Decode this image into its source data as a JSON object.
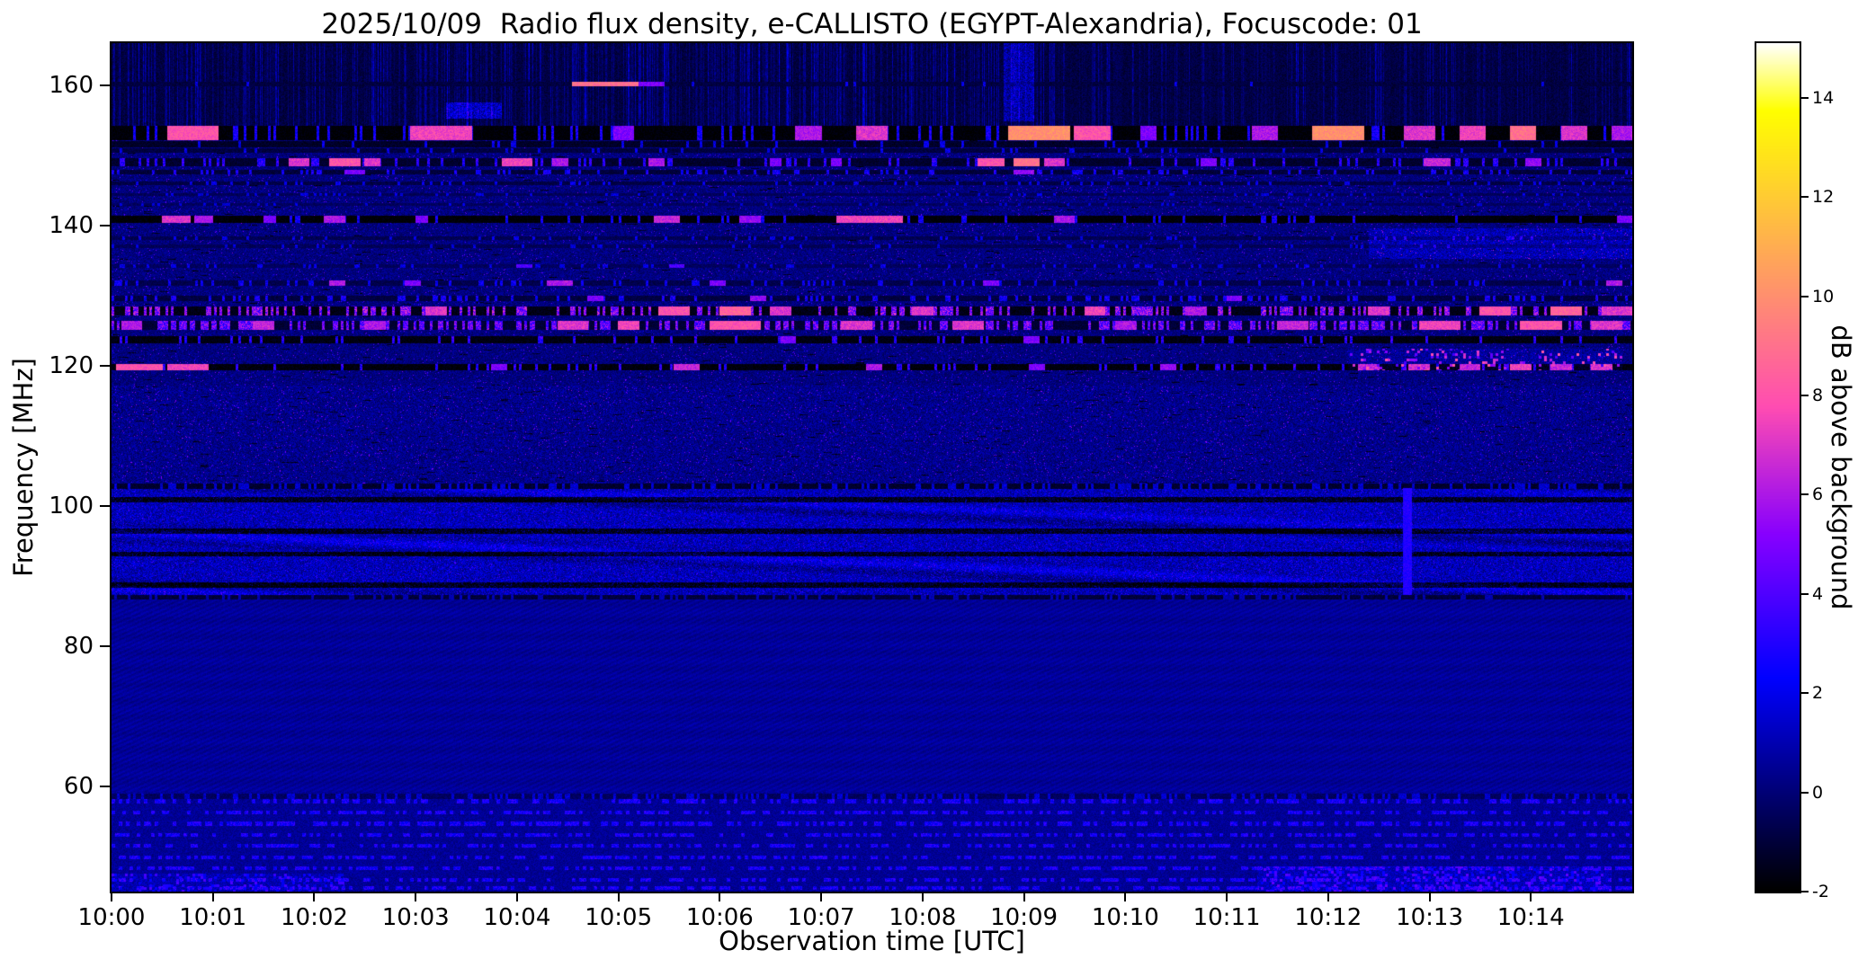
{
  "chart_data": {
    "type": "heatmap",
    "subtype": "radio-spectrogram",
    "title": "2025/10/09  Radio flux density, e-CALLISTO (EGYPT-Alexandria), Focuscode: 01",
    "xlabel": "Observation time [UTC]",
    "ylabel": "Frequency [MHz]",
    "x_ticks": [
      "10:00",
      "10:01",
      "10:02",
      "10:03",
      "10:04",
      "10:05",
      "10:06",
      "10:07",
      "10:08",
      "10:09",
      "10:10",
      "10:11",
      "10:12",
      "10:13",
      "10:14"
    ],
    "x_tick_minutes": [
      0,
      1,
      2,
      3,
      4,
      5,
      6,
      7,
      8,
      9,
      10,
      11,
      12,
      13,
      14
    ],
    "x_range_minutes": [
      0,
      15
    ],
    "y_ticks": [
      160,
      140,
      120,
      100,
      80,
      60
    ],
    "y_range_mhz": [
      45,
      166
    ],
    "grid": false,
    "colorbar": {
      "label": "dB above background",
      "ticks": [
        -2,
        0,
        2,
        4,
        6,
        8,
        10,
        12,
        14
      ],
      "range": [
        -2,
        15.1
      ],
      "colormap": "gnuplot2",
      "colors": {
        "low": "#000000",
        "mid": "#2020cc",
        "high": "#ff66aa",
        "top": "#ffffff"
      }
    },
    "bands": [
      {
        "f_lo": 154.2,
        "f_hi": 166.5,
        "base": -0.9,
        "noise": 0.5,
        "texture": "streaks"
      },
      {
        "f_lo": 117.2,
        "f_hi": 154.2,
        "base": 0.15,
        "noise": 0.75,
        "texture": "speckle"
      },
      {
        "f_lo": 103.2,
        "f_hi": 117.2,
        "base": 0.35,
        "noise": 0.95,
        "texture": "speckle"
      },
      {
        "f_lo": 87.3,
        "f_hi": 103.2,
        "base": 1.1,
        "noise": 1.25,
        "texture": "fm"
      },
      {
        "f_lo": 59.2,
        "f_hi": 87.3,
        "base": 0.55,
        "noise": 0.3,
        "texture": "ripple"
      },
      {
        "f_lo": 44.5,
        "f_hi": 59.2,
        "base": 0.5,
        "noise": 0.55,
        "texture": "dots"
      }
    ],
    "rfi_lines": [
      {
        "f": 160.2,
        "w": 0.35,
        "base": -0.9,
        "dot_prob": 0.02,
        "dot_v": 2,
        "bursts": [
          [
            4.55,
            5.2,
            9
          ],
          [
            5.2,
            5.45,
            5
          ]
        ]
      },
      {
        "f": 153.2,
        "w": 1.05,
        "base": -1.9,
        "dot_prob": 0.12,
        "dot_v": 2.5,
        "bursts": [
          [
            0.55,
            1.05,
            8
          ],
          [
            2.95,
            3.55,
            7.5
          ],
          [
            4.95,
            5.15,
            5
          ],
          [
            6.75,
            7.0,
            6
          ],
          [
            7.35,
            7.65,
            7
          ],
          [
            8.85,
            9.45,
            10
          ],
          [
            9.5,
            9.85,
            8
          ],
          [
            10.15,
            10.3,
            5
          ],
          [
            11.25,
            11.5,
            6
          ],
          [
            11.85,
            12.35,
            10
          ],
          [
            12.75,
            13.05,
            7
          ],
          [
            13.3,
            13.55,
            7.5
          ],
          [
            13.8,
            14.05,
            9
          ],
          [
            14.3,
            14.55,
            7
          ],
          [
            14.8,
            15,
            6
          ]
        ]
      },
      {
        "f": 151.6,
        "w": 0.45,
        "base": -1.3,
        "dot_prob": 0.05,
        "dot_v": 2,
        "bursts": []
      },
      {
        "f": 150.7,
        "w": 0.3,
        "base": -0.9,
        "dot_prob": 0.08,
        "dot_v": 2,
        "bursts": []
      },
      {
        "f": 149.0,
        "w": 0.55,
        "base": -1.2,
        "dot_prob": 0.18,
        "dot_v": 3,
        "bursts": [
          [
            1.75,
            1.95,
            7
          ],
          [
            2.15,
            2.45,
            8
          ],
          [
            2.5,
            2.65,
            7
          ],
          [
            3.85,
            4.15,
            7.5
          ],
          [
            4.35,
            4.5,
            6
          ],
          [
            5.3,
            5.45,
            6
          ],
          [
            6.5,
            6.6,
            5
          ],
          [
            7.1,
            7.2,
            5
          ],
          [
            8.55,
            8.8,
            8
          ],
          [
            8.9,
            9.15,
            9
          ],
          [
            9.2,
            9.4,
            7
          ],
          [
            10.75,
            10.9,
            5
          ],
          [
            12.95,
            13.2,
            6.5
          ],
          [
            13.95,
            14.1,
            5.5
          ]
        ]
      },
      {
        "f": 147.6,
        "w": 0.35,
        "base": -1.0,
        "dot_prob": 0.2,
        "dot_v": 2.5,
        "bursts": [
          [
            2.3,
            2.5,
            5
          ],
          [
            8.9,
            9.1,
            5.5
          ]
        ]
      },
      {
        "f": 146.0,
        "w": 0.3,
        "base": -0.8,
        "dot_prob": 0.15,
        "dot_v": 2,
        "bursts": []
      },
      {
        "f": 144.4,
        "w": 0.25,
        "base": -0.5,
        "dot_prob": 0.12,
        "dot_v": 1.8,
        "bursts": []
      },
      {
        "f": 143.0,
        "w": 0.22,
        "base": -0.4,
        "dot_prob": 0.1,
        "dot_v": 1.6,
        "bursts": []
      },
      {
        "f": 140.9,
        "w": 0.55,
        "base": -1.9,
        "dot_prob": 0.08,
        "dot_v": 2.5,
        "bursts": [
          [
            0.5,
            0.78,
            7
          ],
          [
            0.82,
            1.0,
            6
          ],
          [
            1.5,
            1.62,
            5
          ],
          [
            2.1,
            2.3,
            6
          ],
          [
            3.0,
            3.12,
            5
          ],
          [
            5.35,
            5.6,
            6.5
          ],
          [
            6.2,
            6.4,
            5.5
          ],
          [
            7.15,
            7.8,
            7.5
          ],
          [
            9.3,
            9.5,
            6
          ],
          [
            14.85,
            15,
            5
          ]
        ]
      },
      {
        "f": 138.2,
        "w": 0.28,
        "base": -0.6,
        "dot_prob": 0.12,
        "dot_v": 2,
        "bursts": []
      },
      {
        "f": 137.0,
        "w": 0.25,
        "base": -0.5,
        "dot_prob": 0.1,
        "dot_v": 1.8,
        "bursts": []
      },
      {
        "f": 134.2,
        "w": 0.25,
        "base": -0.4,
        "dot_prob": 0.15,
        "dot_v": 2,
        "bursts": [
          [
            4.0,
            4.15,
            4
          ],
          [
            5.5,
            5.65,
            4
          ]
        ]
      },
      {
        "f": 131.8,
        "w": 0.4,
        "base": -0.7,
        "dot_prob": 0.15,
        "dot_v": 2.2,
        "bursts": [
          [
            2.15,
            2.3,
            6
          ],
          [
            2.9,
            3.05,
            5
          ],
          [
            4.3,
            4.55,
            6
          ],
          [
            5.9,
            6.05,
            5
          ],
          [
            8.6,
            8.75,
            5
          ],
          [
            14.75,
            14.9,
            6
          ]
        ]
      },
      {
        "f": 129.6,
        "w": 0.35,
        "base": -0.9,
        "dot_prob": 0.25,
        "dot_v": 2.5,
        "bursts": [
          [
            4.7,
            4.85,
            5
          ],
          [
            6.3,
            6.45,
            5.5
          ],
          [
            11.0,
            11.15,
            5
          ]
        ]
      },
      {
        "f": 127.8,
        "w": 0.65,
        "base": -1.6,
        "dot_prob": 0.4,
        "dot_v": 5,
        "bursts": [
          [
            3.1,
            3.3,
            7
          ],
          [
            5.4,
            5.7,
            8
          ],
          [
            6.0,
            6.3,
            8.5
          ],
          [
            6.5,
            6.7,
            7
          ],
          [
            7.9,
            8.1,
            7
          ],
          [
            9.6,
            9.8,
            7.5
          ],
          [
            10.6,
            10.8,
            6
          ],
          [
            12.4,
            12.6,
            7
          ],
          [
            13.5,
            13.8,
            8
          ],
          [
            14.2,
            14.5,
            8.5
          ],
          [
            14.7,
            15,
            7
          ]
        ]
      },
      {
        "f": 125.8,
        "w": 0.65,
        "base": -1.1,
        "dot_prob": 0.45,
        "dot_v": 4.5,
        "bursts": [
          [
            0.1,
            0.3,
            6
          ],
          [
            1.4,
            1.6,
            6.5
          ],
          [
            2.5,
            2.7,
            6
          ],
          [
            4.4,
            4.7,
            7
          ],
          [
            5.0,
            5.2,
            7.5
          ],
          [
            5.9,
            6.4,
            8
          ],
          [
            7.2,
            7.5,
            7
          ],
          [
            8.3,
            8.6,
            7
          ],
          [
            9.9,
            10.1,
            6
          ],
          [
            11.5,
            11.8,
            6.5
          ],
          [
            12.9,
            13.3,
            7.5
          ],
          [
            13.9,
            14.3,
            8
          ],
          [
            14.6,
            14.9,
            7
          ]
        ]
      },
      {
        "f": 123.7,
        "w": 0.45,
        "base": -1.7,
        "dot_prob": 0.15,
        "dot_v": 3,
        "bursts": [
          [
            6.6,
            6.75,
            5
          ],
          [
            9.0,
            9.15,
            5
          ]
        ]
      },
      {
        "f": 119.8,
        "w": 0.5,
        "base": -1.8,
        "dot_prob": 0.12,
        "dot_v": 3,
        "bursts": [
          [
            0.05,
            0.5,
            8
          ],
          [
            0.55,
            0.95,
            7.5
          ],
          [
            3.75,
            3.9,
            5
          ],
          [
            5.55,
            5.8,
            6.5
          ],
          [
            7.45,
            7.6,
            6
          ],
          [
            9.05,
            9.2,
            5
          ],
          [
            10.35,
            10.5,
            5.5
          ],
          [
            12.3,
            12.5,
            6
          ],
          [
            12.8,
            13.0,
            6.5
          ],
          [
            13.3,
            13.5,
            6
          ],
          [
            13.8,
            14.0,
            7
          ],
          [
            14.2,
            14.4,
            6
          ],
          [
            14.6,
            14.8,
            6.5
          ]
        ]
      },
      {
        "f": 102.8,
        "w": 0.4,
        "base": -1.2,
        "dot_prob": 0.3,
        "dot_v": 1.5,
        "bursts": []
      },
      {
        "f": 87.0,
        "w": 0.35,
        "base": -1.0,
        "dot_prob": 0.2,
        "dot_v": 1.0,
        "bursts": []
      },
      {
        "f": 58.6,
        "w": 0.35,
        "base": -0.4,
        "dot_prob": 0.3,
        "dot_v": 1.5,
        "bursts": []
      }
    ],
    "fm_dark_lines": [
      100.9,
      96.4,
      93.1,
      88.7
    ],
    "dot_lines": [
      57.9,
      56.3,
      54.7,
      53.1,
      51.5,
      49.9,
      48.3,
      46.7,
      45.5
    ],
    "haze": [
      {
        "f_lo": 155.2,
        "f_hi": 157.6,
        "t0": 3.3,
        "t1": 3.85,
        "v": 2.6,
        "sp": 0,
        "sv": 0
      },
      {
        "f_lo": 154.8,
        "f_hi": 166.0,
        "t0": 8.8,
        "t1": 9.1,
        "v": 2.0,
        "sp": 0,
        "sv": 0
      },
      {
        "f_lo": 135.3,
        "f_hi": 139.6,
        "t0": 12.4,
        "t1": 15,
        "v": 1.2,
        "sp": 0,
        "sv": 0
      },
      {
        "f_lo": 119.4,
        "f_hi": 122.4,
        "t0": 12.2,
        "t1": 14.9,
        "v": 0.6,
        "sp": 0.12,
        "sv": 6
      },
      {
        "f_lo": 44.5,
        "f_hi": 48.6,
        "t0": 11.3,
        "t1": 14.8,
        "v": 0.8,
        "sp": 0.3,
        "sv": 3.2
      },
      {
        "f_lo": 44.5,
        "f_hi": 47.6,
        "t0": 0,
        "t1": 2.3,
        "v": 0.6,
        "sp": 0.25,
        "sv": 2.8
      }
    ],
    "vlines": [
      {
        "t": 12.78,
        "f_lo": 87.3,
        "f_hi": 102.6,
        "v": 3.0,
        "w": 0.045
      }
    ],
    "streaks": {
      "density": 0.5,
      "amp": 3.4,
      "left_minutes": 9.3,
      "right_keep": 0.55
    }
  }
}
